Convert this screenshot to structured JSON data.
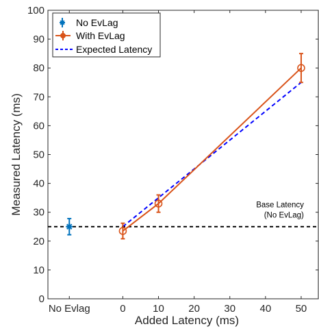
{
  "chart_data": {
    "type": "line",
    "xlabel": "Added Latency (ms)",
    "ylabel": "Measured Latency (ms)",
    "x_ticks": [
      {
        "label": "No Evlag",
        "value": -15
      },
      {
        "label": "0",
        "value": 0
      },
      {
        "label": "10",
        "value": 10
      },
      {
        "label": "20",
        "value": 20
      },
      {
        "label": "30",
        "value": 30
      },
      {
        "label": "40",
        "value": 40
      },
      {
        "label": "50",
        "value": 50
      }
    ],
    "xlim": [
      -21,
      55
    ],
    "ylim": [
      0,
      100
    ],
    "y_ticks": [
      "0",
      "10",
      "20",
      "30",
      "40",
      "50",
      "60",
      "70",
      "80",
      "90",
      "100"
    ],
    "grid": false,
    "legend_position": "top-left",
    "series": [
      {
        "name": "No EvLag",
        "color": "#0072BD",
        "marker": "star",
        "points": [
          {
            "x": -15,
            "y": 25,
            "err": 2.8
          }
        ]
      },
      {
        "name": "With EvLag",
        "color": "#D95319",
        "marker": "circle",
        "points": [
          {
            "x": 0,
            "y": 23.5,
            "err": 2.7
          },
          {
            "x": 10,
            "y": 33,
            "err": 3
          },
          {
            "x": 50,
            "y": 80,
            "err": 5
          }
        ]
      },
      {
        "name": "Expected Latency",
        "color": "#0000FF",
        "dash": "dashed",
        "points": [
          {
            "x": 0,
            "y": 25
          },
          {
            "x": 50,
            "y": 75
          }
        ]
      }
    ],
    "reference_line": {
      "y": 25,
      "color": "#000000",
      "dash": "dashed"
    },
    "annotation": {
      "lines": [
        "Base Latency",
        "(No EvLag)"
      ],
      "x": 45,
      "y": 27
    }
  }
}
